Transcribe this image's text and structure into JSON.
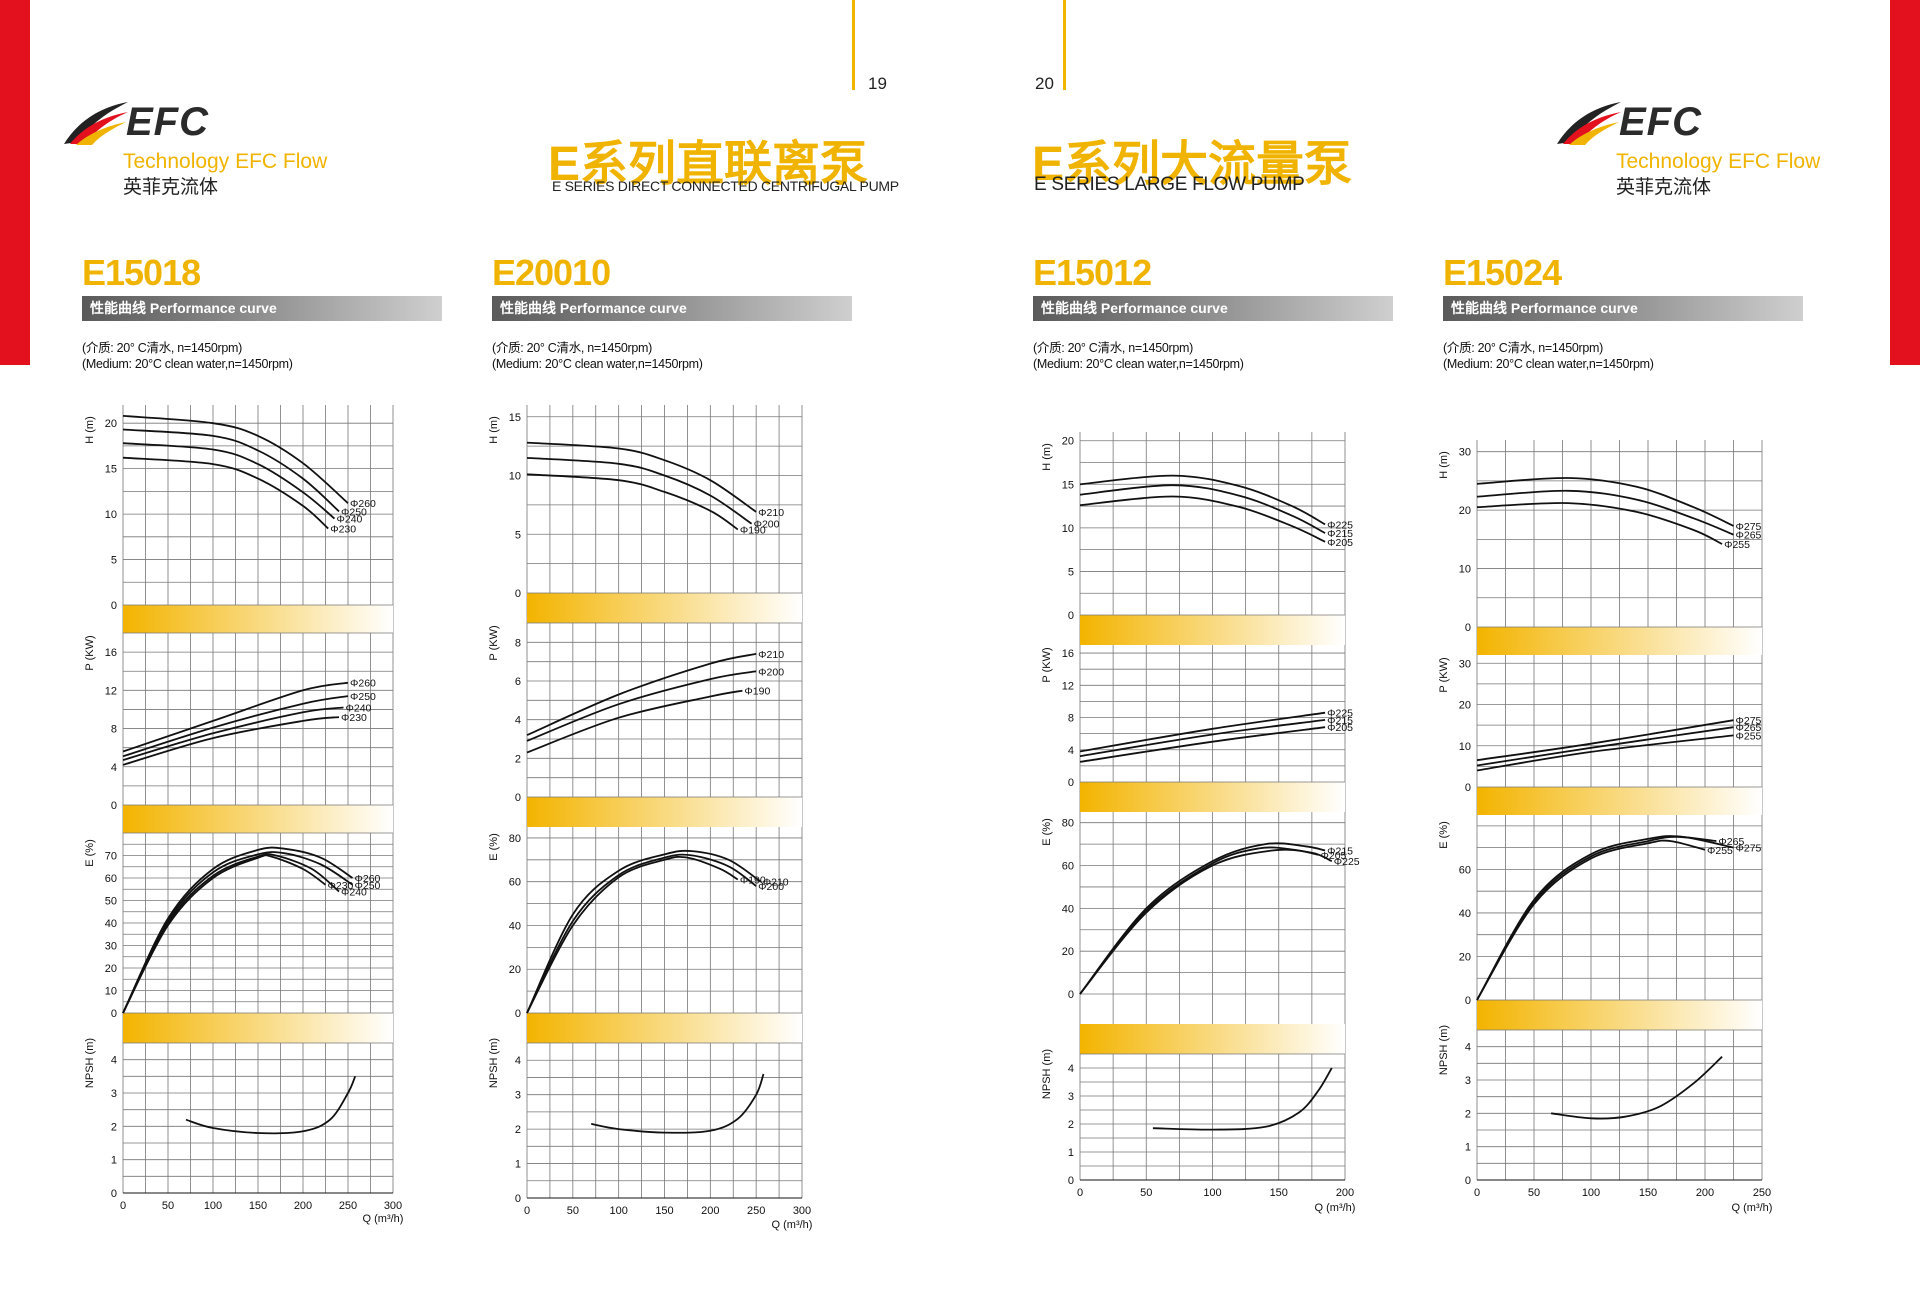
{
  "pages": {
    "left": "19",
    "right": "20"
  },
  "brand": {
    "name": "EFC",
    "tagline": "Technology EFC Flow",
    "chinese": "英菲克流体"
  },
  "left_title": {
    "cn": "E系列直联离泵",
    "en": "E SERIES DIRECT CONNECTED CENTRIFUGAL PUMP"
  },
  "right_title": {
    "cn": "E系列大流量泵",
    "en": "E SERIES LARGE FLOW PUMP"
  },
  "performance_label": "性能曲线  Performance curve",
  "medium_cn": "(介质: 20° C清水, n=1450rpm)",
  "medium_en": "(Medium: 20°C clean water,n=1450rpm)",
  "axis_labels": {
    "h": "H (m)",
    "p": "P (KW)",
    "e": "E (%)",
    "npsh": "NPSH (m)",
    "q": "Q (m³/h)"
  },
  "colors": {
    "accent": "#f0b400",
    "red": "#e3101e",
    "band_start": "#f3b400",
    "band_end": "#ffffff"
  },
  "chart_data": [
    {
      "type": "line",
      "model": "E15018",
      "x_ticks": [
        0,
        50,
        100,
        150,
        200,
        250,
        300
      ],
      "xlim": [
        0,
        300
      ],
      "H": {
        "ylim": [
          0,
          22
        ],
        "ticks": [
          0,
          5,
          10,
          15,
          20
        ],
        "series": [
          {
            "name": "Φ260",
            "x": [
              0,
              100,
              150,
              200,
              250
            ],
            "y": [
              20.8,
              20.0,
              18.6,
              15.6,
              11.2
            ]
          },
          {
            "name": "Φ250",
            "x": [
              0,
              100,
              150,
              200,
              240
            ],
            "y": [
              19.3,
              18.6,
              17.0,
              13.9,
              10.3
            ]
          },
          {
            "name": "Φ240",
            "x": [
              0,
              100,
              150,
              200,
              235
            ],
            "y": [
              17.8,
              17.1,
              15.5,
              12.4,
              9.5
            ]
          },
          {
            "name": "Φ230",
            "x": [
              0,
              100,
              150,
              200,
              228
            ],
            "y": [
              16.2,
              15.5,
              13.9,
              10.9,
              8.4
            ]
          }
        ]
      },
      "P": {
        "ylim": [
          0,
          18
        ],
        "ticks": [
          0,
          4,
          8,
          12,
          16
        ],
        "series": [
          {
            "name": "Φ260",
            "x": [
              0,
              100,
              200,
              250
            ],
            "y": [
              5.6,
              8.8,
              12.0,
              12.8
            ]
          },
          {
            "name": "Φ250",
            "x": [
              0,
              100,
              200,
              250
            ],
            "y": [
              5.1,
              8.1,
              10.6,
              11.4
            ]
          },
          {
            "name": "Φ240",
            "x": [
              0,
              100,
              200,
              245
            ],
            "y": [
              4.7,
              7.5,
              9.7,
              10.2
            ]
          },
          {
            "name": "Φ230",
            "x": [
              0,
              100,
              200,
              240
            ],
            "y": [
              4.2,
              7.0,
              8.8,
              9.2
            ]
          }
        ]
      },
      "E": {
        "ylim": [
          0,
          80
        ],
        "ticks": [
          0,
          10,
          20,
          30,
          40,
          50,
          60,
          70
        ],
        "series": [
          {
            "name": "Φ260",
            "x": [
              0,
              50,
              100,
              150,
              180,
              220,
              255
            ],
            "y": [
              0,
              42,
              64,
              72.5,
              73,
              69,
              60
            ]
          },
          {
            "name": "Φ250",
            "x": [
              0,
              50,
              100,
              150,
              180,
              220,
              255
            ],
            "y": [
              0,
              41,
              62.5,
              70.5,
              71,
              66,
              57
            ]
          },
          {
            "name": "Φ240",
            "x": [
              0,
              50,
              100,
              150,
              170,
              210,
              240
            ],
            "y": [
              0,
              40,
              61,
              69.5,
              70,
              64,
              54
            ]
          },
          {
            "name": "Φ230",
            "x": [
              0,
              50,
              100,
              150,
              165,
              200,
              225
            ],
            "y": [
              0,
              39,
              60,
              69,
              69.5,
              64,
              57
            ]
          }
        ]
      },
      "NPSH": {
        "ylim": [
          0,
          4.5
        ],
        "ticks": [
          0,
          1,
          2,
          3,
          4
        ],
        "series": [
          {
            "name": "",
            "x": [
              70,
              100,
              150,
              200,
              230,
              250,
              258
            ],
            "y": [
              2.2,
              1.95,
              1.8,
              1.85,
              2.2,
              3.0,
              3.5
            ]
          }
        ]
      }
    },
    {
      "type": "line",
      "model": "E20010",
      "x_ticks": [
        0,
        50,
        100,
        150,
        200,
        250,
        300
      ],
      "xlim": [
        0,
        300
      ],
      "H": {
        "ylim": [
          0,
          16
        ],
        "ticks": [
          0,
          5,
          10,
          15
        ],
        "series": [
          {
            "name": "Φ210",
            "x": [
              0,
              100,
              150,
              200,
              250
            ],
            "y": [
              12.8,
              12.3,
              11.3,
              9.6,
              6.9
            ]
          },
          {
            "name": "Φ200",
            "x": [
              0,
              100,
              150,
              200,
              245
            ],
            "y": [
              11.5,
              11.0,
              10.0,
              8.3,
              5.9
            ]
          },
          {
            "name": "Φ190",
            "x": [
              0,
              100,
              150,
              200,
              230
            ],
            "y": [
              10.1,
              9.6,
              8.6,
              7.0,
              5.4
            ]
          }
        ]
      },
      "P": {
        "ylim": [
          0,
          9
        ],
        "ticks": [
          0,
          2,
          4,
          6,
          8
        ],
        "series": [
          {
            "name": "Φ210",
            "x": [
              0,
              100,
              200,
              250
            ],
            "y": [
              3.2,
              5.3,
              6.9,
              7.4
            ]
          },
          {
            "name": "Φ200",
            "x": [
              0,
              100,
              200,
              250
            ],
            "y": [
              2.9,
              4.8,
              6.1,
              6.5
            ]
          },
          {
            "name": "Φ190",
            "x": [
              0,
              100,
              200,
              235
            ],
            "y": [
              2.3,
              4.1,
              5.2,
              5.5
            ]
          }
        ]
      },
      "E": {
        "ylim": [
          0,
          85
        ],
        "ticks": [
          0,
          20,
          40,
          60,
          80
        ],
        "series": [
          {
            "name": "Φ210",
            "x": [
              0,
              50,
              100,
              150,
              180,
              220,
              255
            ],
            "y": [
              0,
              45,
              65,
              72.5,
              74,
              70,
              60
            ]
          },
          {
            "name": "Φ200",
            "x": [
              0,
              50,
              100,
              150,
              180,
              220,
              250
            ],
            "y": [
              0,
              42,
              63,
              71,
              72,
              67,
              58
            ]
          },
          {
            "name": "Φ190",
            "x": [
              0,
              50,
              100,
              150,
              175,
              210,
              230
            ],
            "y": [
              0,
              40,
              62,
              70,
              71,
              66,
              61
            ]
          }
        ]
      },
      "NPSH": {
        "ylim": [
          0,
          4.5
        ],
        "ticks": [
          0,
          1,
          2,
          3,
          4
        ],
        "series": [
          {
            "name": "",
            "x": [
              70,
              100,
              150,
              200,
              230,
              250,
              258
            ],
            "y": [
              2.15,
              2.0,
              1.9,
              1.95,
              2.3,
              3.0,
              3.6
            ]
          }
        ]
      }
    },
    {
      "type": "line",
      "model": "E15012",
      "x_ticks": [
        0,
        50,
        100,
        150,
        200
      ],
      "xlim": [
        0,
        200
      ],
      "H": {
        "ylim": [
          0,
          21
        ],
        "ticks": [
          0,
          5,
          10,
          15,
          20
        ],
        "series": [
          {
            "name": "Φ225",
            "x": [
              0,
              70,
              120,
              160,
              185
            ],
            "y": [
              15.0,
              16.0,
              14.8,
              12.5,
              10.4
            ]
          },
          {
            "name": "Φ215",
            "x": [
              0,
              70,
              120,
              160,
              185
            ],
            "y": [
              13.8,
              14.9,
              13.7,
              11.4,
              9.4
            ]
          },
          {
            "name": "Φ205",
            "x": [
              0,
              70,
              120,
              160,
              185
            ],
            "y": [
              12.6,
              13.6,
              12.4,
              10.2,
              8.4
            ]
          }
        ]
      },
      "P": {
        "ylim": [
          0,
          17
        ],
        "ticks": [
          0,
          4,
          8,
          12,
          16
        ],
        "series": [
          {
            "name": "Φ225",
            "x": [
              0,
              100,
              185
            ],
            "y": [
              3.8,
              6.6,
              8.6
            ]
          },
          {
            "name": "Φ215",
            "x": [
              0,
              100,
              185
            ],
            "y": [
              3.2,
              5.9,
              7.7
            ]
          },
          {
            "name": "Φ205",
            "x": [
              0,
              100,
              185
            ],
            "y": [
              2.5,
              5.0,
              6.8
            ]
          }
        ]
      },
      "E": {
        "ylim": [
          0,
          85
        ],
        "ticks": [
          0,
          20,
          40,
          60,
          80
        ],
        "series": [
          {
            "name": "Φ215",
            "x": [
              0,
              50,
              100,
              140,
              170,
              185
            ],
            "y": [
              0,
              40,
              62,
              70,
              69,
              67
            ]
          },
          {
            "name": "Φ205",
            "x": [
              0,
              50,
              100,
              135,
              160,
              180
            ],
            "y": [
              0,
              39,
              61,
              68,
              67.5,
              65
            ]
          },
          {
            "name": "Φ225",
            "x": [
              0,
              50,
              100,
              145,
              175,
              190
            ],
            "y": [
              0,
              38,
              60,
              67,
              66,
              62
            ]
          }
        ]
      },
      "NPSH": {
        "ylim": [
          0,
          4.5
        ],
        "ticks": [
          0,
          1,
          2,
          3,
          4
        ],
        "series": [
          {
            "name": "",
            "x": [
              55,
              100,
              140,
              165,
              180,
              190
            ],
            "y": [
              1.85,
              1.8,
              1.9,
              2.4,
              3.2,
              4.0
            ]
          }
        ]
      }
    },
    {
      "type": "line",
      "model": "E15024",
      "x_ticks": [
        0,
        50,
        100,
        150,
        200,
        250
      ],
      "xlim": [
        0,
        250
      ],
      "H": {
        "ylim": [
          0,
          32
        ],
        "ticks": [
          0,
          10,
          20,
          30
        ],
        "series": [
          {
            "name": "Φ275",
            "x": [
              0,
              80,
              140,
              190,
              225
            ],
            "y": [
              24.5,
              25.5,
              24.0,
              20.5,
              17.3
            ]
          },
          {
            "name": "Φ265",
            "x": [
              0,
              80,
              140,
              190,
              225
            ],
            "y": [
              22.3,
              23.3,
              21.8,
              18.6,
              15.8
            ]
          },
          {
            "name": "Φ255",
            "x": [
              0,
              80,
              140,
              190,
              215
            ],
            "y": [
              20.5,
              21.2,
              19.7,
              16.6,
              14.2
            ]
          }
        ]
      },
      "P": {
        "ylim": [
          0,
          32
        ],
        "ticks": [
          0,
          10,
          20,
          30
        ],
        "series": [
          {
            "name": "Φ275",
            "x": [
              0,
              100,
              225
            ],
            "y": [
              6.5,
              10.5,
              16.2
            ]
          },
          {
            "name": "Φ265",
            "x": [
              0,
              100,
              225
            ],
            "y": [
              5.2,
              9.5,
              14.5
            ]
          },
          {
            "name": "Φ255",
            "x": [
              0,
              100,
              225
            ],
            "y": [
              4.0,
              8.5,
              12.5
            ]
          }
        ]
      },
      "E": {
        "ylim": [
          0,
          85
        ],
        "ticks": [
          0,
          20,
          40,
          60
        ],
        "series": [
          {
            "name": "Φ265",
            "x": [
              0,
              50,
              100,
              150,
              175,
              210
            ],
            "y": [
              0,
              45,
              66,
              73,
              75,
              73
            ]
          },
          {
            "name": "Φ255",
            "x": [
              0,
              50,
              100,
              150,
              170,
              200
            ],
            "y": [
              0,
              44,
              65,
              72,
              73,
              69
            ]
          },
          {
            "name": "Φ275",
            "x": [
              0,
              50,
              100,
              150,
              180,
              225
            ],
            "y": [
              0,
              46,
              67,
              74,
              75,
              70
            ]
          }
        ]
      },
      "NPSH": {
        "ylim": [
          0,
          4.5
        ],
        "ticks": [
          0,
          1,
          2,
          3,
          4
        ],
        "series": [
          {
            "name": "",
            "x": [
              65,
              100,
              130,
              160,
              190,
              215
            ],
            "y": [
              2.0,
              1.85,
              1.9,
              2.2,
              2.9,
              3.7
            ]
          }
        ]
      }
    }
  ]
}
